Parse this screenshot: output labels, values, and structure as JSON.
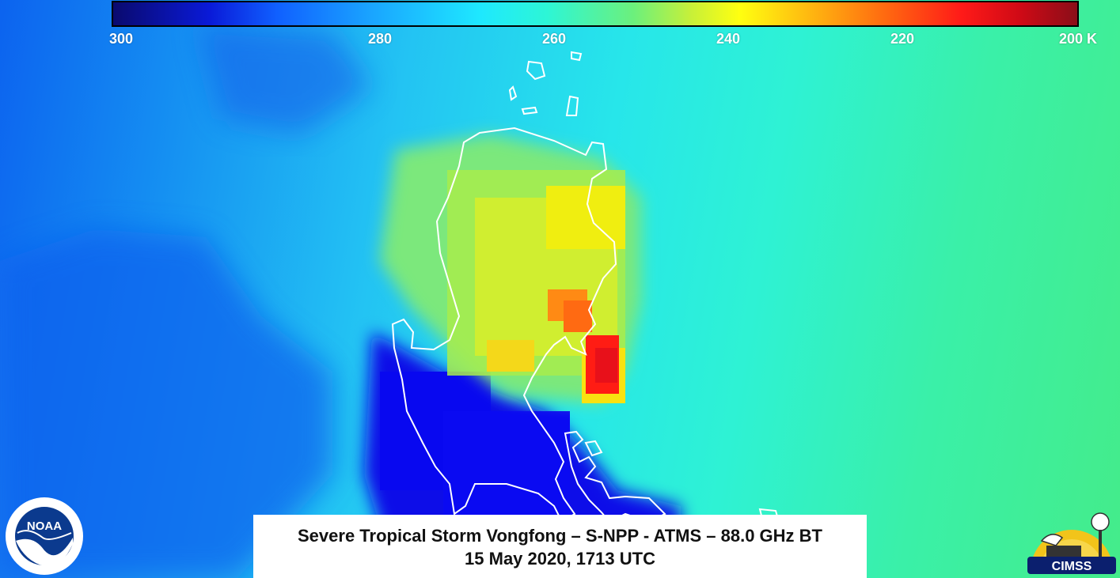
{
  "colorbar": {
    "ticks": [
      "300",
      "280",
      "260",
      "240",
      "220",
      "200 K"
    ]
  },
  "title": {
    "line1": "Severe Tropical Storm Vongfong – S-NPP - ATMS – 88.0 GHz BT",
    "line2": "15 May 2020, 1713 UTC"
  },
  "logos": {
    "noaa_text": "NOAA",
    "cimss_text": "CIMSS"
  },
  "colors": {
    "ocean_cool": "#0c63ef",
    "ocean_mid": "#27e6ea",
    "ocean_east": "#44ec8a",
    "storm_yellow": "#ffff10",
    "storm_red": "#ff1a18",
    "coastline": "#ffffff"
  }
}
